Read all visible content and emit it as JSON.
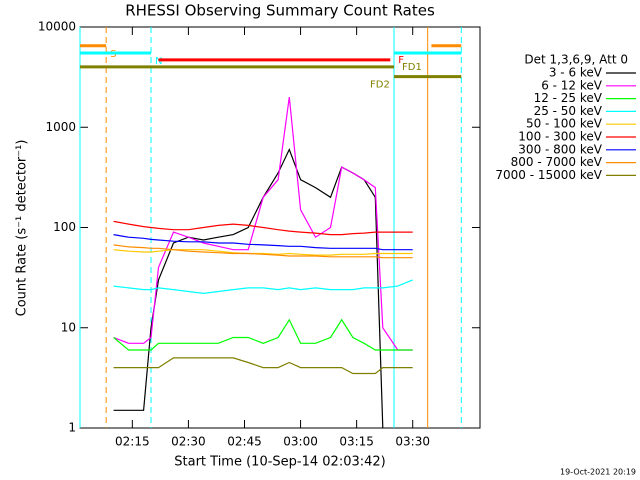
{
  "chart_data": {
    "type": "line",
    "title": "RHESSI Observing Summary Count Rates",
    "xlabel": "Start Time (10-Sep-14 02:03:42)",
    "ylabel": "Count Rate (s⁻¹ detector⁻¹)",
    "legend_title": "Det 1,3,6,9, Att 0",
    "footer": "19-Oct-2021 20:19",
    "log_y": true,
    "xlim": [
      "02:01",
      "03:48"
    ],
    "xticks": [
      "02:15",
      "02:30",
      "02:45",
      "03:00",
      "03:15",
      "03:30"
    ],
    "ylim": [
      1,
      10000
    ],
    "yticks": [
      1,
      10,
      100,
      1000,
      10000
    ],
    "x": [
      "02:10",
      "02:14",
      "02:18",
      "02:20",
      "02:22",
      "02:26",
      "02:30",
      "02:34",
      "02:38",
      "02:42",
      "02:46",
      "02:50",
      "02:54",
      "02:57",
      "03:00",
      "03:04",
      "03:08",
      "03:11",
      "03:14",
      "03:17",
      "03:20",
      "03:22",
      "03:26",
      "03:30"
    ],
    "series": [
      {
        "name": "3 - 6 keV",
        "color": "#000000",
        "values": [
          1.5,
          1.5,
          1.5,
          10,
          30,
          70,
          80,
          75,
          80,
          85,
          100,
          200,
          350,
          600,
          300,
          250,
          200,
          400,
          350,
          300,
          200,
          1,
          null,
          null
        ]
      },
      {
        "name": "6 - 12 keV",
        "color": "#ff00ff",
        "values": [
          8,
          7,
          7,
          8,
          40,
          90,
          80,
          70,
          65,
          60,
          60,
          200,
          300,
          2000,
          150,
          80,
          100,
          400,
          350,
          300,
          250,
          10,
          6,
          6
        ]
      },
      {
        "name": "12 - 25 keV",
        "color": "#00ff00",
        "values": [
          8,
          6,
          6,
          6,
          7,
          7,
          7,
          7,
          7,
          8,
          8,
          7,
          8,
          12,
          7,
          7,
          8,
          12,
          8,
          7,
          6,
          6,
          6,
          6
        ]
      },
      {
        "name": "25 - 50 keV",
        "color": "#00ffff",
        "values": [
          26,
          25,
          24,
          24,
          25,
          24,
          23,
          22,
          23,
          24,
          25,
          25,
          24,
          25,
          24,
          25,
          24,
          24,
          24,
          25,
          25,
          25,
          26,
          30
        ]
      },
      {
        "name": "50 - 100 keV",
        "color": "#ffc800",
        "values": [
          60,
          58,
          57,
          57,
          58,
          60,
          60,
          60,
          58,
          56,
          55,
          55,
          54,
          55,
          54,
          53,
          53,
          54,
          54,
          54,
          55,
          55,
          55,
          55
        ]
      },
      {
        "name": "100 - 300 keV",
        "color": "#ff0000",
        "values": [
          115,
          108,
          102,
          100,
          98,
          95,
          95,
          100,
          105,
          108,
          105,
          100,
          95,
          92,
          90,
          88,
          85,
          85,
          87,
          88,
          90,
          90,
          90,
          90
        ]
      },
      {
        "name": "300 - 800 keV",
        "color": "#0000ff",
        "values": [
          85,
          80,
          78,
          76,
          75,
          73,
          72,
          72,
          70,
          70,
          68,
          67,
          66,
          65,
          65,
          63,
          62,
          62,
          62,
          62,
          62,
          60,
          60,
          60
        ]
      },
      {
        "name": "800 - 7000 keV",
        "color": "#ff8c00",
        "values": [
          67,
          64,
          63,
          62,
          62,
          60,
          58,
          57,
          56,
          55,
          55,
          54,
          53,
          52,
          52,
          52,
          51,
          51,
          51,
          51,
          51,
          50,
          50,
          50
        ]
      },
      {
        "name": "7000 - 15000 keV",
        "color": "#808000",
        "values": [
          4,
          4,
          4,
          4,
          4,
          5,
          5,
          5,
          5,
          5,
          4.5,
          4,
          4,
          4.5,
          4,
          4,
          4,
          4,
          3.5,
          3.5,
          3.5,
          4,
          4,
          4
        ]
      }
    ],
    "flags": [
      {
        "label": "S",
        "color": "#ff8c00",
        "level": 6500,
        "segments": [
          [
            "02:01",
            "02:08"
          ],
          [
            "03:35",
            "03:43"
          ]
        ]
      },
      {
        "label": "N",
        "color": "#00ffff",
        "level": 5500,
        "segments": [
          [
            "02:01",
            "02:20"
          ],
          [
            "03:25",
            "03:43"
          ]
        ]
      },
      {
        "label": "F",
        "color": "#ff0000",
        "level": 4700,
        "segments": [
          [
            "02:22",
            "03:24"
          ]
        ]
      },
      {
        "label": "FD1",
        "color": "#808000",
        "level": 4000,
        "segments": [
          [
            "02:01",
            "03:25"
          ]
        ]
      },
      {
        "label": "FD2",
        "color": "#808000",
        "level": 3200,
        "segments": [
          [
            "03:25",
            "03:43"
          ]
        ]
      }
    ],
    "markers": [
      {
        "x": "02:01",
        "color": "#00ffff",
        "dashed": false
      },
      {
        "x": "02:08",
        "color": "#ff8c00",
        "dashed": true
      },
      {
        "x": "02:20",
        "color": "#00ffff",
        "dashed": true
      },
      {
        "x": "03:25",
        "color": "#00ffff",
        "dashed": false
      },
      {
        "x": "03:34",
        "color": "#ff8c00",
        "dashed": false
      },
      {
        "x": "03:43",
        "color": "#00ffff",
        "dashed": true
      }
    ]
  }
}
